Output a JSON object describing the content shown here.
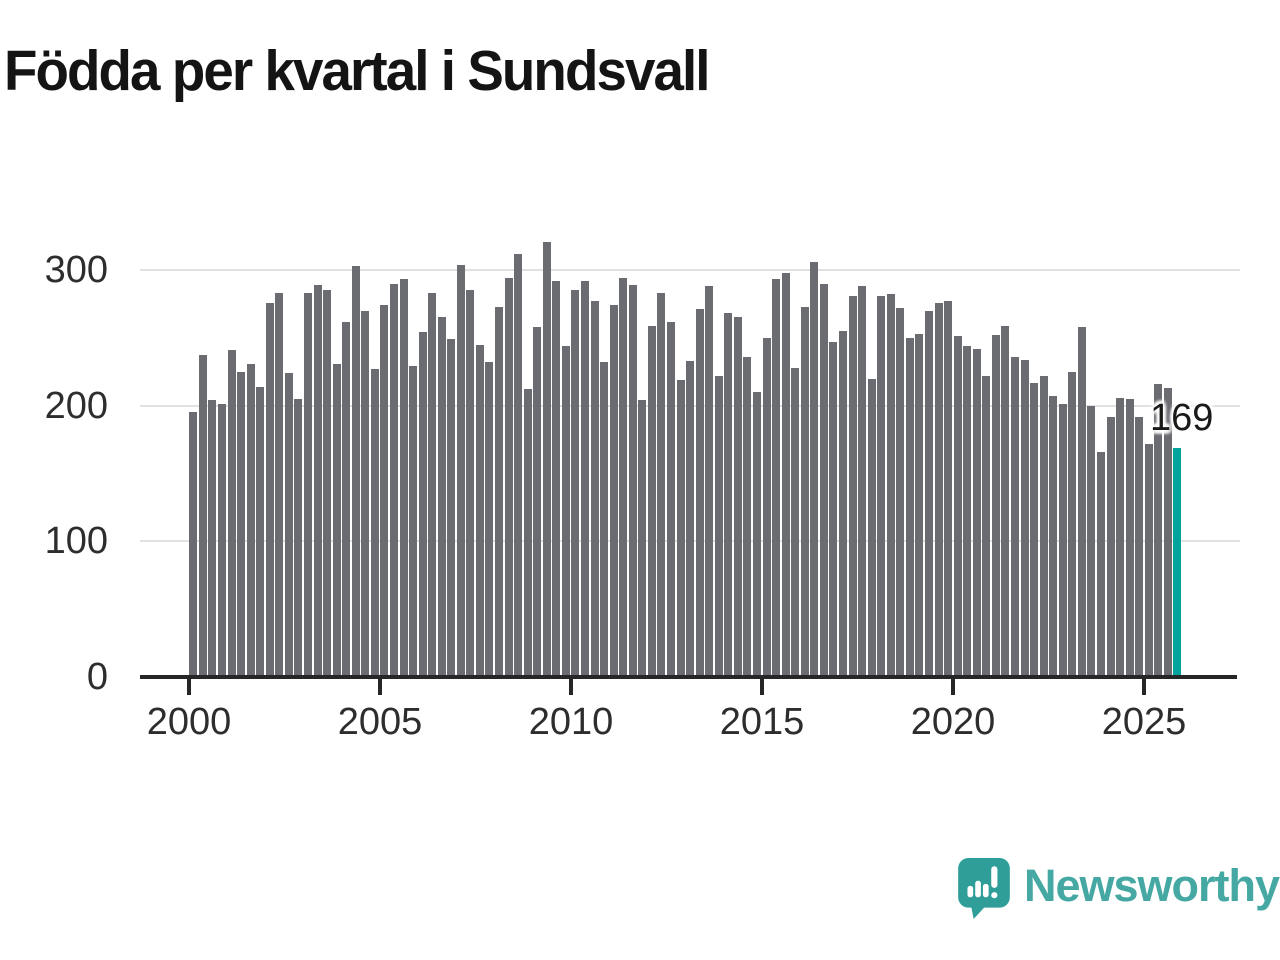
{
  "title": "Födda per kvartal i Sundsvall",
  "chart_data": {
    "type": "bar",
    "title": "Födda per kvartal i Sundsvall",
    "xlabel": "",
    "ylabel": "",
    "ylim": [
      0,
      330
    ],
    "grid": "horizontal",
    "legend": "none",
    "bar_color": "#6B6B72",
    "highlight_color": "#00A49D",
    "highlight_index": 103,
    "highlight_label": "169",
    "x_ticks": [
      "2000",
      "2005",
      "2010",
      "2015",
      "2020",
      "2025"
    ],
    "y_ticks": [
      0,
      100,
      200,
      300
    ],
    "categories": [
      "2000 Q1",
      "2000 Q2",
      "2000 Q3",
      "2000 Q4",
      "2001 Q1",
      "2001 Q2",
      "2001 Q3",
      "2001 Q4",
      "2002 Q1",
      "2002 Q2",
      "2002 Q3",
      "2002 Q4",
      "2003 Q1",
      "2003 Q2",
      "2003 Q3",
      "2003 Q4",
      "2004 Q1",
      "2004 Q2",
      "2004 Q3",
      "2004 Q4",
      "2005 Q1",
      "2005 Q2",
      "2005 Q3",
      "2005 Q4",
      "2006 Q1",
      "2006 Q2",
      "2006 Q3",
      "2006 Q4",
      "2007 Q1",
      "2007 Q2",
      "2007 Q3",
      "2007 Q4",
      "2008 Q1",
      "2008 Q2",
      "2008 Q3",
      "2008 Q4",
      "2009 Q1",
      "2009 Q2",
      "2009 Q3",
      "2009 Q4",
      "2010 Q1",
      "2010 Q2",
      "2010 Q3",
      "2010 Q4",
      "2011 Q1",
      "2011 Q2",
      "2011 Q3",
      "2011 Q4",
      "2012 Q1",
      "2012 Q2",
      "2012 Q3",
      "2012 Q4",
      "2013 Q1",
      "2013 Q2",
      "2013 Q3",
      "2013 Q4",
      "2014 Q1",
      "2014 Q2",
      "2014 Q3",
      "2014 Q4",
      "2015 Q1",
      "2015 Q2",
      "2015 Q3",
      "2015 Q4",
      "2016 Q1",
      "2016 Q2",
      "2016 Q3",
      "2016 Q4",
      "2017 Q1",
      "2017 Q2",
      "2017 Q3",
      "2017 Q4",
      "2018 Q1",
      "2018 Q2",
      "2018 Q3",
      "2018 Q4",
      "2019 Q1",
      "2019 Q2",
      "2019 Q3",
      "2019 Q4",
      "2020 Q1",
      "2020 Q2",
      "2020 Q3",
      "2020 Q4",
      "2021 Q1",
      "2021 Q2",
      "2021 Q3",
      "2021 Q4",
      "2022 Q1",
      "2022 Q2",
      "2022 Q3",
      "2022 Q4",
      "2023 Q1",
      "2023 Q2",
      "2023 Q3",
      "2023 Q4",
      "2024 Q1",
      "2024 Q2",
      "2024 Q3",
      "2024 Q4",
      "2025 Q1",
      "2025 Q2",
      "2025 Q3",
      "2025 Q4"
    ],
    "values": [
      195,
      237,
      204,
      201,
      241,
      225,
      231,
      214,
      276,
      283,
      224,
      205,
      283,
      289,
      285,
      231,
      262,
      303,
      270,
      227,
      274,
      290,
      293,
      229,
      254,
      283,
      265,
      249,
      304,
      285,
      245,
      232,
      273,
      294,
      312,
      212,
      258,
      321,
      292,
      244,
      285,
      292,
      277,
      232,
      274,
      294,
      289,
      204,
      259,
      283,
      262,
      219,
      233,
      271,
      288,
      222,
      268,
      265,
      236,
      210,
      250,
      293,
      298,
      228,
      273,
      306,
      290,
      247,
      255,
      281,
      288,
      220,
      281,
      282,
      272,
      250,
      253,
      270,
      276,
      277,
      251,
      244,
      242,
      222,
      252,
      259,
      236,
      234,
      217,
      222,
      207,
      201,
      225,
      258,
      200,
      166,
      192,
      206,
      205,
      192,
      172,
      216,
      213,
      169
    ]
  },
  "annotation": {
    "text": "169"
  },
  "logo": {
    "text": "Newsworthy",
    "icon": "newsworthy-speech-bubble-chart-icon",
    "text_color": "#46A8A3",
    "icon_color": "#2F9E99"
  },
  "colors": {
    "bar": "#6B6B72",
    "highlight": "#00A49D",
    "grid": "#E1E1E1",
    "axis": "#262626",
    "axis_labels": "#2D2D2D",
    "title": "#141414"
  }
}
